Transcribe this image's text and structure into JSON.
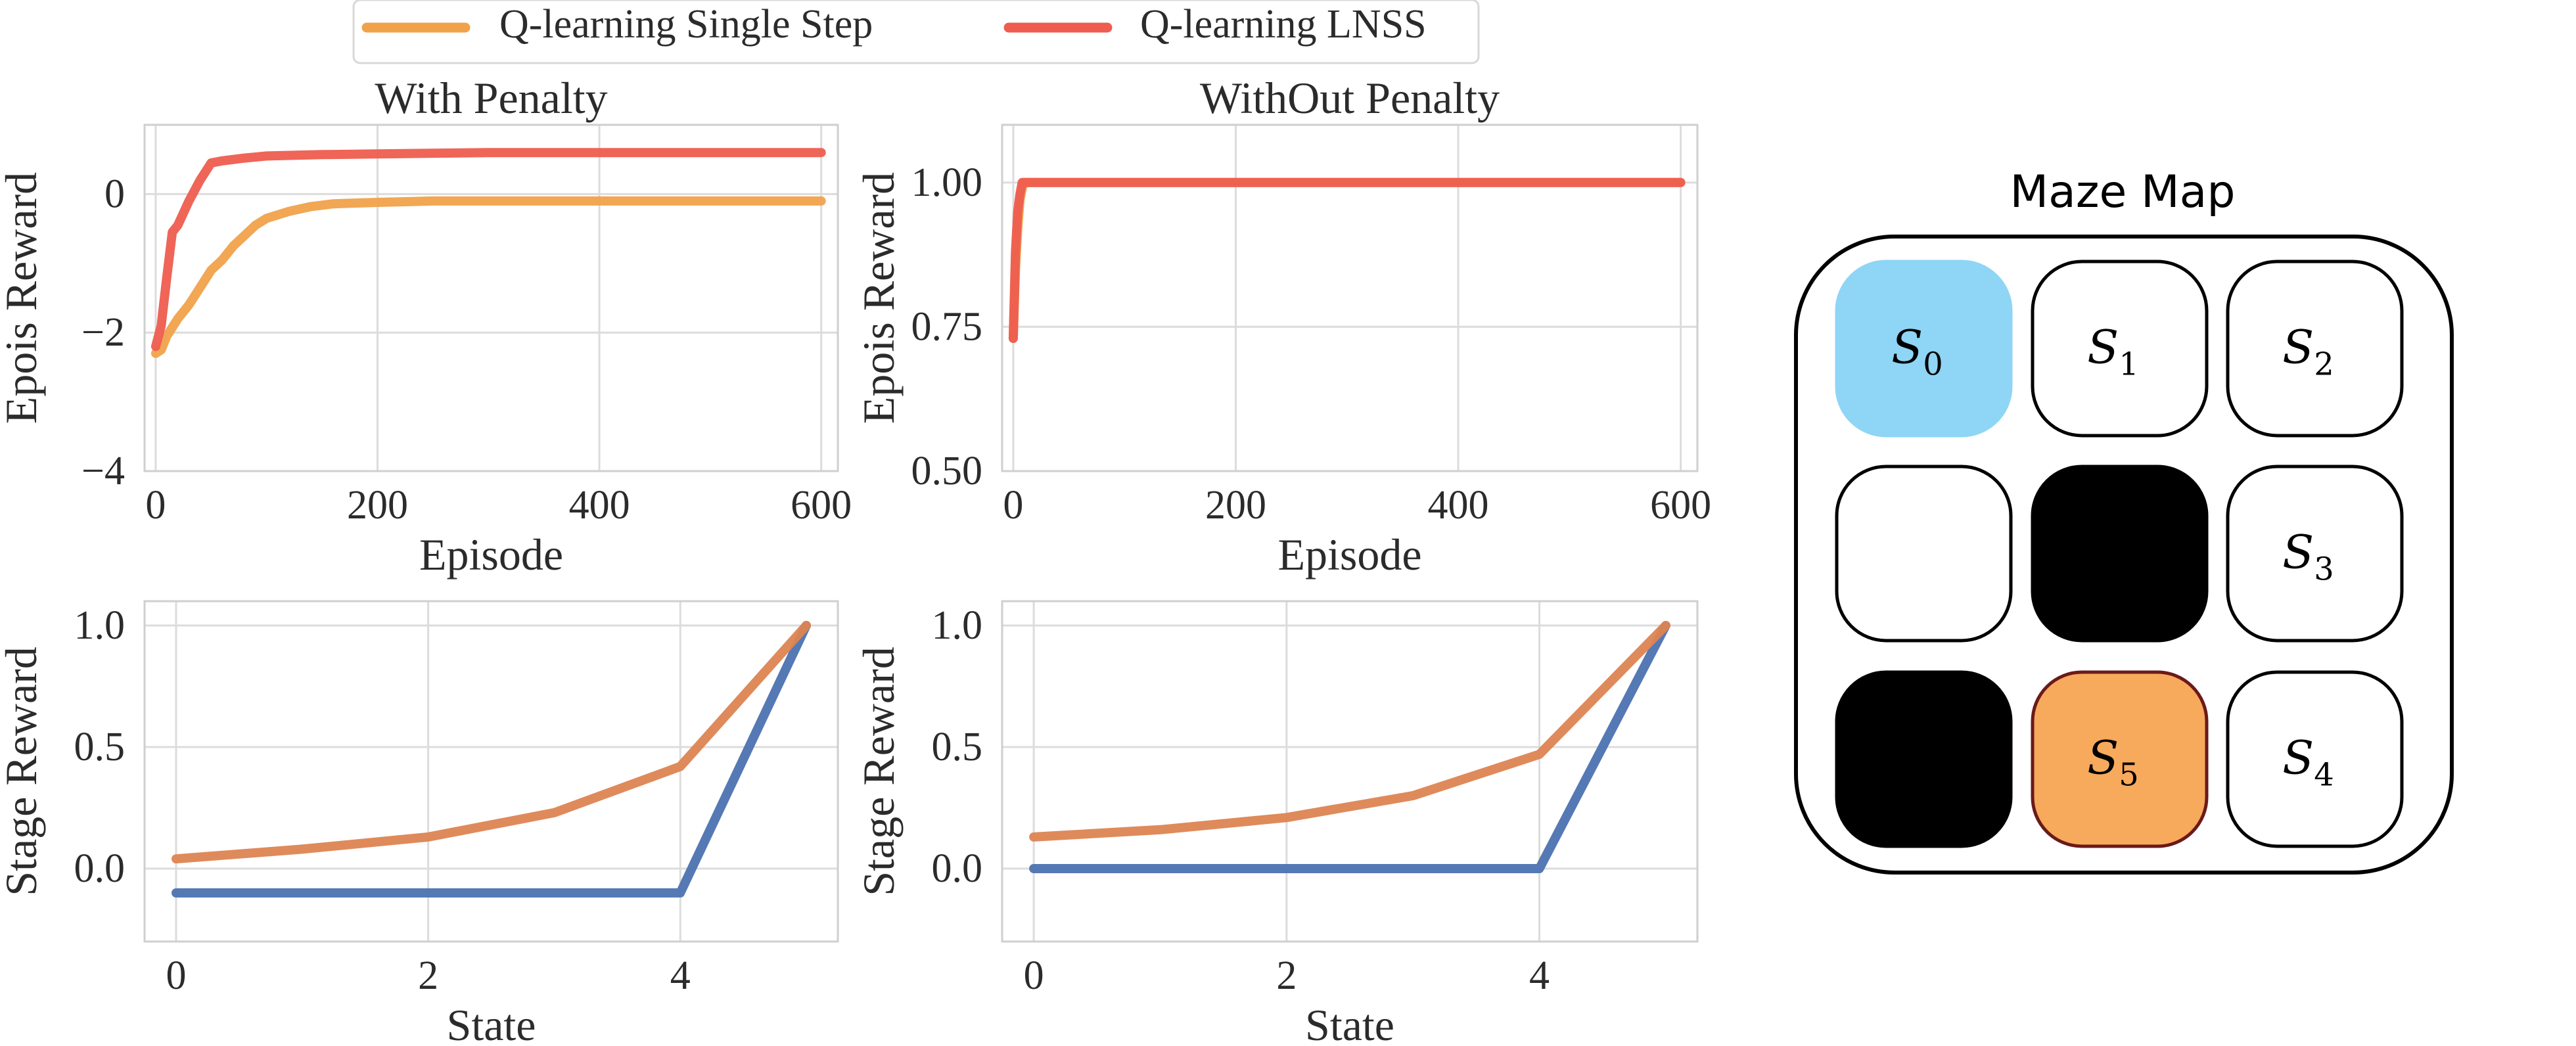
{
  "legend": {
    "entries": [
      {
        "label": "Q-learning Single Step",
        "color": "#f0a24a"
      },
      {
        "label": "Q-learning LNSS",
        "color": "#ee5d4f"
      }
    ]
  },
  "chart_data": [
    {
      "type": "line",
      "title": "With Penalty",
      "xlabel": "Episode",
      "ylabel": "Epois Reward",
      "xlim": [
        -10,
        615
      ],
      "ylim": [
        -4,
        1
      ],
      "xticks": [
        0,
        200,
        400,
        600
      ],
      "yticks": [
        -4,
        -2,
        0
      ],
      "ytick_labels": [
        "−4",
        "−2",
        "0"
      ],
      "grid": true,
      "series": [
        {
          "name": "Q-learning Single Step",
          "color": "#f0a24a",
          "x": [
            0,
            5,
            10,
            20,
            30,
            40,
            50,
            60,
            70,
            80,
            90,
            100,
            120,
            140,
            160,
            200,
            250,
            300,
            400,
            500,
            600
          ],
          "y": [
            -2.3,
            -2.25,
            -2.05,
            -1.8,
            -1.6,
            -1.35,
            -1.1,
            -0.95,
            -0.75,
            -0.6,
            -0.45,
            -0.35,
            -0.25,
            -0.18,
            -0.14,
            -0.12,
            -0.1,
            -0.1,
            -0.1,
            -0.1,
            -0.1
          ]
        },
        {
          "name": "Q-learning LNSS",
          "color": "#ee5d4f",
          "x": [
            0,
            5,
            10,
            15,
            20,
            30,
            40,
            50,
            60,
            80,
            100,
            150,
            200,
            300,
            400,
            500,
            600
          ],
          "y": [
            -2.2,
            -1.9,
            -1.2,
            -0.55,
            -0.45,
            -0.1,
            0.2,
            0.45,
            0.48,
            0.52,
            0.55,
            0.57,
            0.58,
            0.6,
            0.6,
            0.6,
            0.6
          ]
        }
      ]
    },
    {
      "type": "line",
      "title": "WithOut Penalty",
      "xlabel": "Episode",
      "ylabel": "Epois Reward",
      "xlim": [
        -10,
        615
      ],
      "ylim": [
        0.5,
        1.1
      ],
      "xticks": [
        0,
        200,
        400,
        600
      ],
      "yticks": [
        0.5,
        0.75,
        1.0
      ],
      "ytick_labels": [
        "0.50",
        "0.75",
        "1.00"
      ],
      "grid": true,
      "series": [
        {
          "name": "Q-learning Single Step",
          "color": "#f0a24a",
          "x": [
            0,
            2,
            4,
            6,
            8,
            10,
            600
          ],
          "y": [
            0.73,
            0.85,
            0.92,
            0.97,
            0.99,
            1.0,
            1.0
          ]
        },
        {
          "name": "Q-learning LNSS",
          "color": "#ee5d4f",
          "x": [
            0,
            2,
            4,
            6,
            8,
            10,
            600
          ],
          "y": [
            0.73,
            0.88,
            0.95,
            0.98,
            1.0,
            1.0,
            1.0
          ]
        }
      ]
    },
    {
      "type": "line",
      "title": "",
      "xlabel": "State",
      "ylabel": "Stage Reward",
      "xlim": [
        -0.25,
        5.25
      ],
      "ylim": [
        -0.3,
        1.1
      ],
      "xticks": [
        0,
        2,
        4
      ],
      "yticks": [
        0.0,
        0.5,
        1.0
      ],
      "ytick_labels": [
        "0.0",
        "0.5",
        "1.0"
      ],
      "grid": true,
      "series": [
        {
          "color": "#4c72b0",
          "x": [
            0,
            1,
            2,
            3,
            4,
            5
          ],
          "y": [
            -0.1,
            -0.1,
            -0.1,
            -0.1,
            -0.1,
            1.0
          ]
        },
        {
          "color": "#dd8452",
          "x": [
            0,
            1,
            2,
            3,
            4,
            5
          ],
          "y": [
            0.04,
            0.08,
            0.13,
            0.23,
            0.42,
            1.0
          ]
        }
      ]
    },
    {
      "type": "line",
      "title": "",
      "xlabel": "State",
      "ylabel": "Stage Reward",
      "xlim": [
        -0.25,
        5.25
      ],
      "ylim": [
        -0.3,
        1.1
      ],
      "xticks": [
        0,
        2,
        4
      ],
      "yticks": [
        0.0,
        0.5,
        1.0
      ],
      "ytick_labels": [
        "0.0",
        "0.5",
        "1.0"
      ],
      "grid": true,
      "series": [
        {
          "color": "#4c72b0",
          "x": [
            0,
            1,
            2,
            3,
            4,
            5
          ],
          "y": [
            0.0,
            0.0,
            0.0,
            0.0,
            0.0,
            1.0
          ]
        },
        {
          "color": "#dd8452",
          "x": [
            0,
            1,
            2,
            3,
            4,
            5
          ],
          "y": [
            0.13,
            0.16,
            0.21,
            0.3,
            0.47,
            1.0
          ]
        }
      ]
    }
  ],
  "maze": {
    "title": "Maze Map",
    "colors": {
      "start": "#8fd5f5",
      "goal": "#f7a95c",
      "wall": "#000000",
      "open": "#ffffff",
      "goal_border": "#6b1a1a"
    },
    "cells": [
      {
        "type": "start",
        "label": "S",
        "sub": "0"
      },
      {
        "type": "open",
        "label": "S",
        "sub": "1"
      },
      {
        "type": "open",
        "label": "S",
        "sub": "2"
      },
      {
        "type": "open",
        "label": "",
        "sub": ""
      },
      {
        "type": "wall",
        "label": "",
        "sub": ""
      },
      {
        "type": "open",
        "label": "S",
        "sub": "3"
      },
      {
        "type": "wall",
        "label": "",
        "sub": ""
      },
      {
        "type": "goal",
        "label": "S",
        "sub": "5"
      },
      {
        "type": "open",
        "label": "S",
        "sub": "4"
      }
    ]
  }
}
